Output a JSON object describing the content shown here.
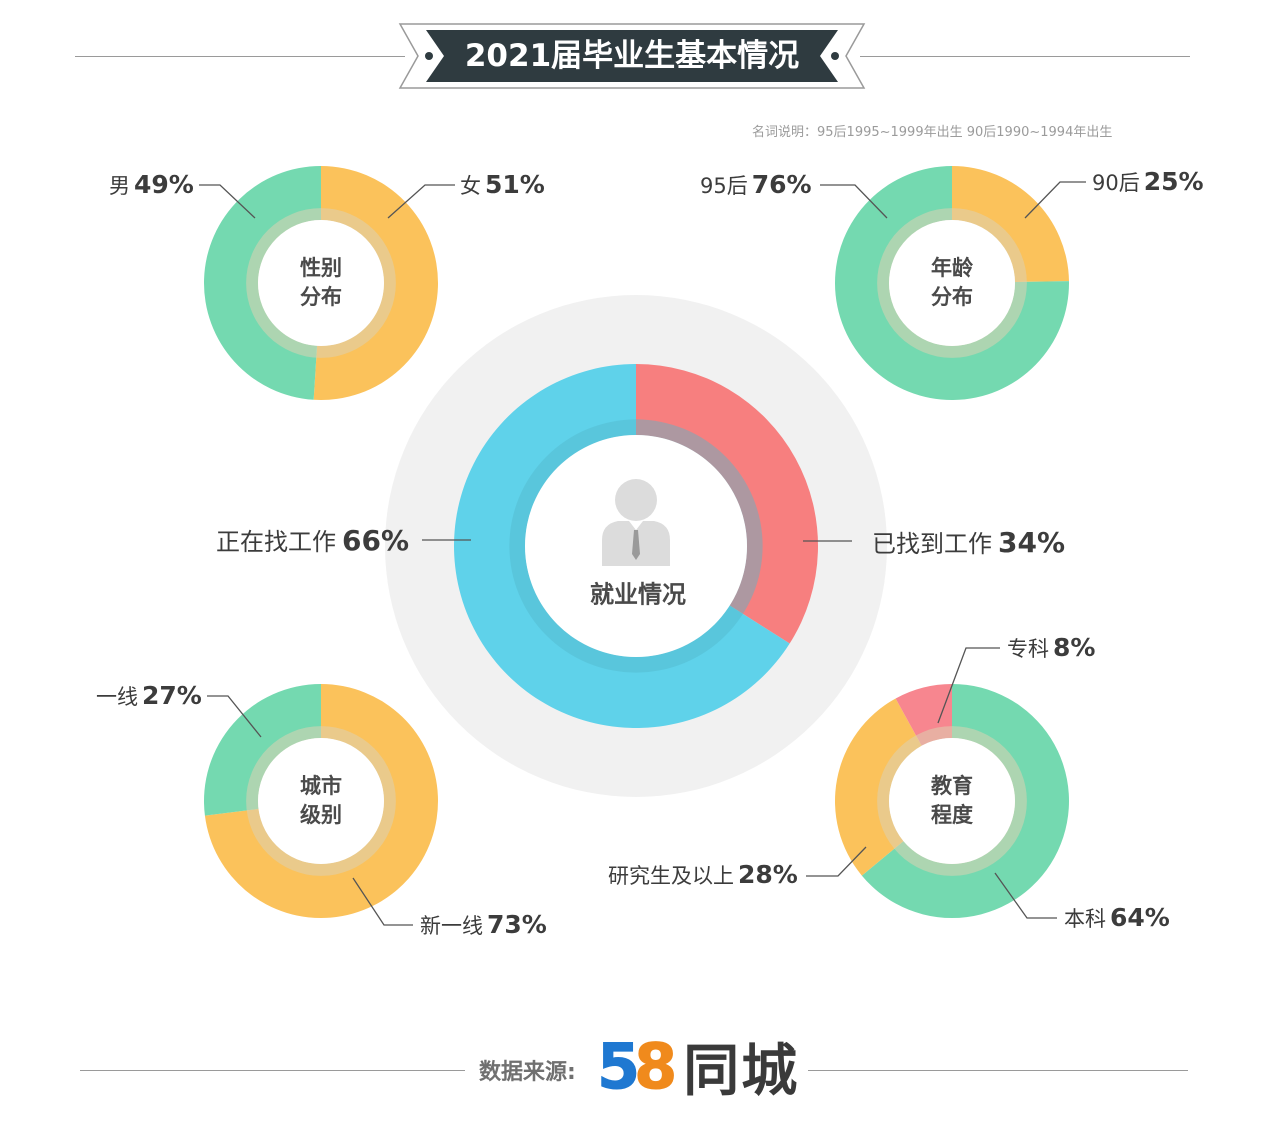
{
  "title": "2021届毕业生基本情况",
  "note": "名词说明：95后1995~1999年出生 90后1990~1994年出生",
  "colors": {
    "green": "#74d9b0",
    "orange": "#fbc25b",
    "blue": "#5fd2ea",
    "red": "#f77f7f",
    "pink": "#f7868f",
    "banner": "#2f3b40"
  },
  "chart_data": [
    {
      "type": "pie",
      "title": "就业情况",
      "slices": [
        {
          "label": "已找到工作",
          "value": 34,
          "value_label": "34%",
          "color": "#f77f7f"
        },
        {
          "label": "正在找工作",
          "value": 66,
          "value_label": "66%",
          "color": "#5fd2ea"
        }
      ]
    },
    {
      "type": "pie",
      "title": "性别分布",
      "title_lines": [
        "性别",
        "分布"
      ],
      "slices": [
        {
          "label": "女",
          "value": 51,
          "value_label": "51%",
          "color": "#fbc25b"
        },
        {
          "label": "男",
          "value": 49,
          "value_label": "49%",
          "color": "#74d9b0"
        }
      ]
    },
    {
      "type": "pie",
      "title": "年龄分布",
      "title_lines": [
        "年龄",
        "分布"
      ],
      "slices": [
        {
          "label": "90后",
          "value": 25,
          "value_label": "25%",
          "color": "#fbc25b"
        },
        {
          "label": "95后",
          "value": 76,
          "value_label": "76%",
          "color": "#74d9b0"
        }
      ]
    },
    {
      "type": "pie",
      "title": "城市级别",
      "title_lines": [
        "城市",
        "级别"
      ],
      "slices": [
        {
          "label": "新一线",
          "value": 73,
          "value_label": "73%",
          "color": "#fbc25b"
        },
        {
          "label": "一线",
          "value": 27,
          "value_label": "27%",
          "color": "#74d9b0"
        }
      ]
    },
    {
      "type": "pie",
      "title": "教育程度",
      "title_lines": [
        "教育",
        "程度"
      ],
      "slices": [
        {
          "label": "本科",
          "value": 64,
          "value_label": "64%",
          "color": "#74d9b0"
        },
        {
          "label": "研究生及以上",
          "value": 28,
          "value_label": "28%",
          "color": "#fbc25b"
        },
        {
          "label": "专科",
          "value": 8,
          "value_label": "8%",
          "color": "#f7868f"
        }
      ]
    }
  ],
  "footer": {
    "source_label": "数据来源:",
    "logo_digit_five": "5",
    "logo_digit_eight": "8",
    "logo_text": "同城"
  }
}
